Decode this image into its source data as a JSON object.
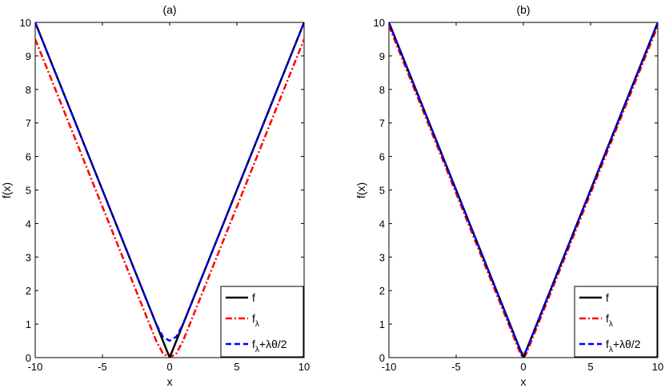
{
  "chart_data": [
    {
      "type": "line",
      "title": "(a)",
      "xlabel": "x",
      "ylabel": "f(x)",
      "xlim": [
        -10,
        10
      ],
      "ylim": [
        0,
        10
      ],
      "xticks": [
        "-10",
        "-5",
        "0",
        "5",
        "10"
      ],
      "yticks": [
        "0",
        "1",
        "2",
        "3",
        "4",
        "5",
        "6",
        "7",
        "8",
        "9",
        "10"
      ],
      "grid": false,
      "legend_position": "bottom-right",
      "series": [
        {
          "name": "f",
          "color": "#000000",
          "style": "solid",
          "x": [
            -10,
            -5,
            0,
            5,
            10
          ],
          "y": [
            10,
            5,
            0,
            5,
            10
          ]
        },
        {
          "name": "f_λ",
          "color": "#ff0000",
          "style": "dashdot",
          "x": [
            -10,
            -5,
            -1,
            -0.5,
            0,
            0.5,
            1,
            5,
            10
          ],
          "y": [
            9.5,
            4.5,
            0.5,
            0.125,
            0,
            0.125,
            0.5,
            4.5,
            9.5
          ]
        },
        {
          "name": "f_λ+λθ/2",
          "color": "#0000ff",
          "style": "dashed",
          "x": [
            -10,
            -5,
            -1,
            -0.5,
            0,
            0.5,
            1,
            5,
            10
          ],
          "y": [
            10,
            5,
            1.0,
            0.625,
            0.5,
            0.625,
            1.0,
            5,
            10
          ]
        }
      ]
    },
    {
      "type": "line",
      "title": "(b)",
      "xlabel": "x",
      "ylabel": "f(x)",
      "xlim": [
        -10,
        10
      ],
      "ylim": [
        0,
        10
      ],
      "xticks": [
        "-10",
        "-5",
        "0",
        "5",
        "10"
      ],
      "yticks": [
        "0",
        "1",
        "2",
        "3",
        "4",
        "5",
        "6",
        "7",
        "8",
        "9",
        "10"
      ],
      "grid": false,
      "legend_position": "bottom-right",
      "series": [
        {
          "name": "f",
          "color": "#000000",
          "style": "solid",
          "x": [
            -10,
            -5,
            0,
            5,
            10
          ],
          "y": [
            10,
            5,
            0,
            5,
            10
          ]
        },
        {
          "name": "f_λ",
          "color": "#ff0000",
          "style": "dashdot",
          "x": [
            -10,
            -5,
            -0.2,
            0,
            0.2,
            5,
            10
          ],
          "y": [
            9.9,
            4.9,
            0.1,
            0,
            0.1,
            4.9,
            9.9
          ]
        },
        {
          "name": "f_λ+λθ/2",
          "color": "#0000ff",
          "style": "dashed",
          "x": [
            -10,
            -5,
            -0.2,
            0,
            0.2,
            5,
            10
          ],
          "y": [
            10,
            5,
            0.2,
            0.1,
            0.2,
            5,
            10
          ]
        }
      ]
    }
  ]
}
